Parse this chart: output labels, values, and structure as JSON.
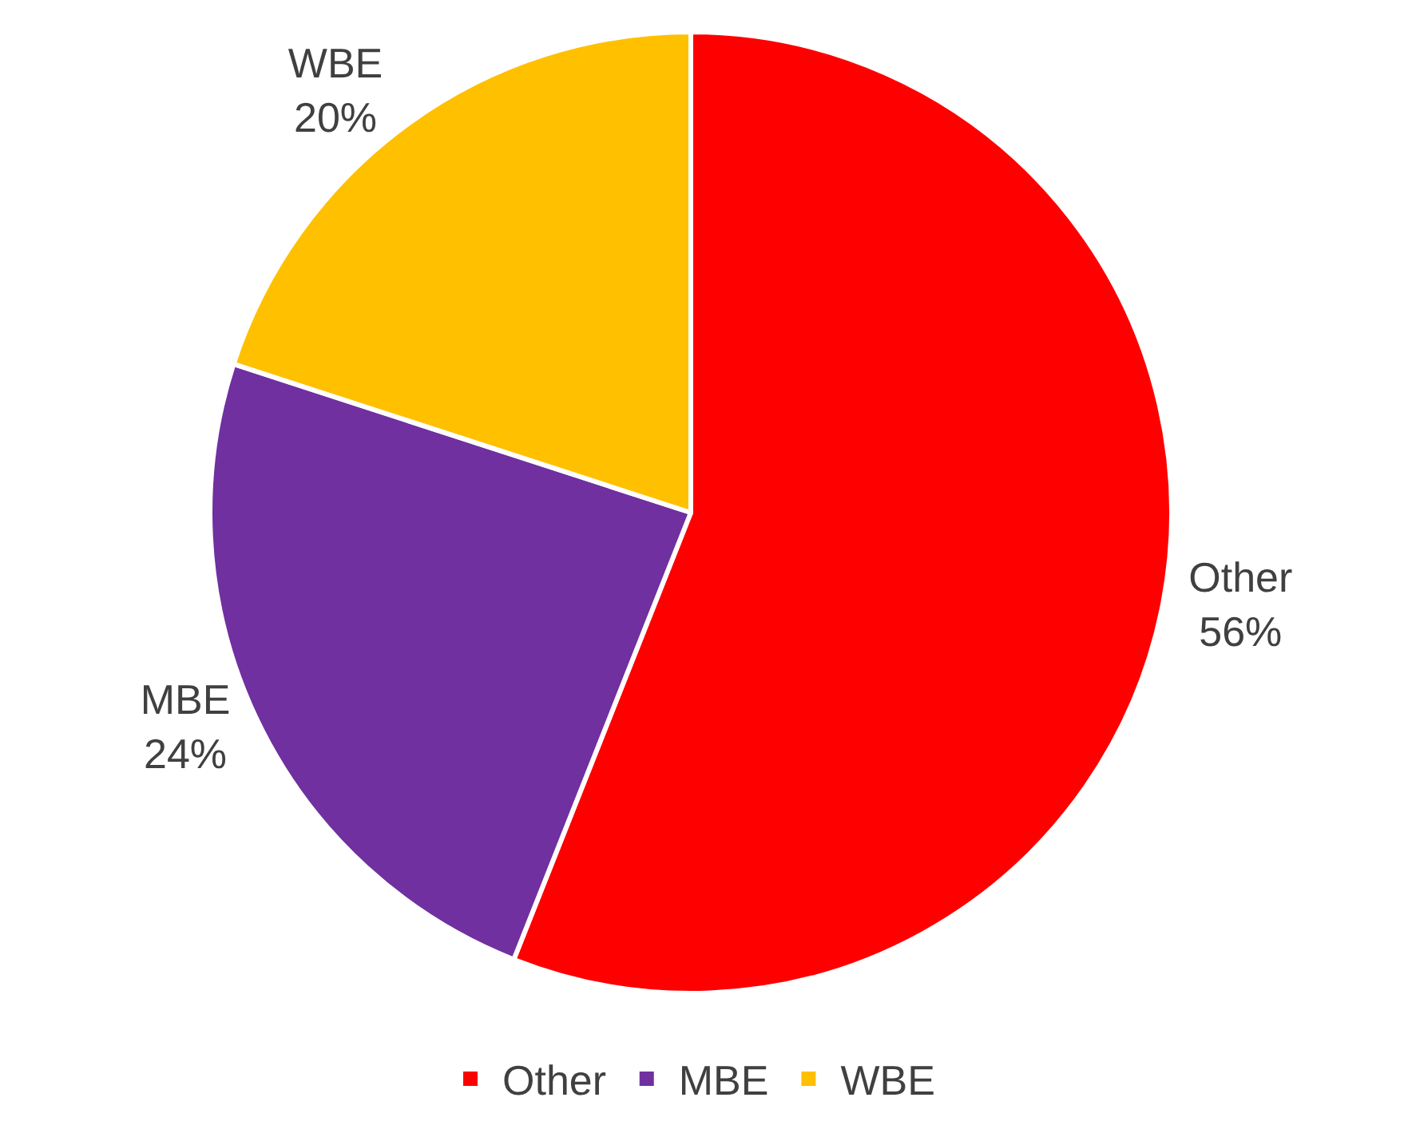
{
  "chart_data": {
    "type": "pie",
    "categories": [
      "Other",
      "MBE",
      "WBE"
    ],
    "values": [
      56,
      24,
      20
    ],
    "colors": [
      "#ff0000",
      "#7030a0",
      "#ffc000"
    ],
    "value_labels": [
      "56%",
      "24%",
      "20%"
    ],
    "legend": "bottom"
  }
}
